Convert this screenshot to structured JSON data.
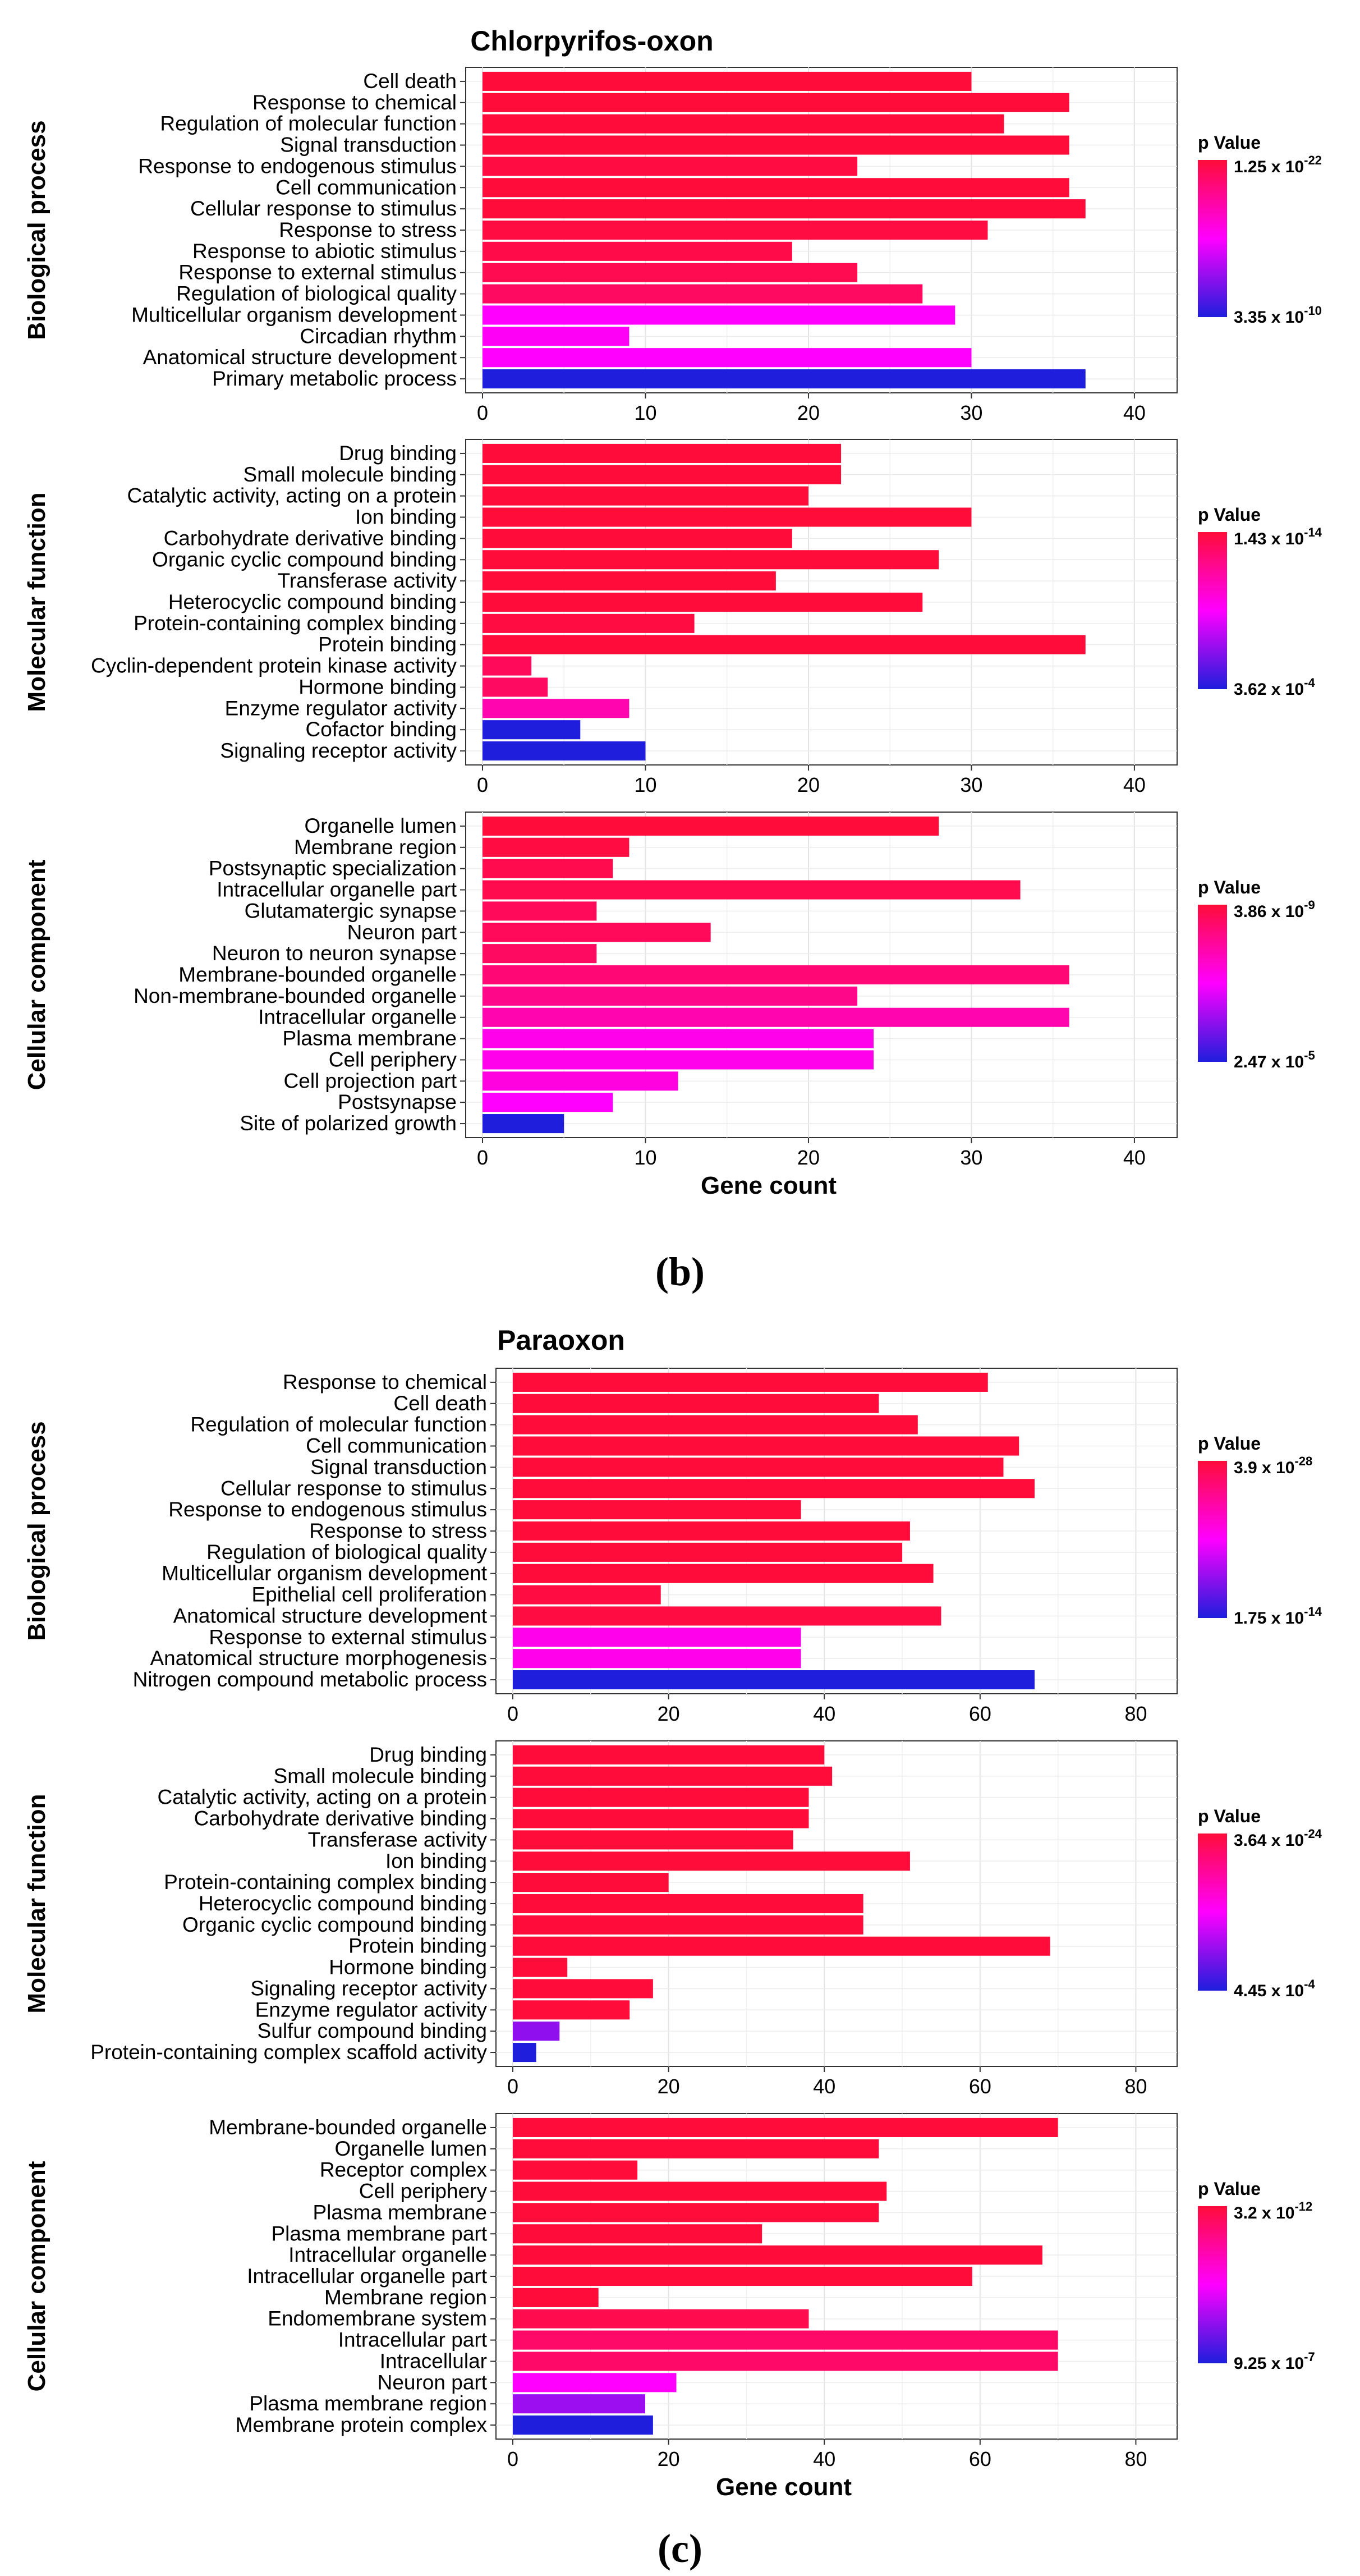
{
  "chart_data": [
    {
      "type": "bar",
      "title": "Chlorpyrifos-oxon",
      "caption": "(b)",
      "xlabel": "Gene count",
      "xlim": [
        0,
        42
      ],
      "xticks": [
        0,
        10,
        20,
        30,
        40
      ],
      "colorscale": {
        "high": "#ff0c3a",
        "mid": "#ff00ff",
        "low": "#1e1edc"
      },
      "panels": [
        {
          "facet": "Biological process",
          "categories": [
            "Cell death",
            "Response to chemical",
            "Regulation of molecular function",
            "Signal transduction",
            "Response to endogenous stimulus",
            "Cell communication",
            "Cellular response to stimulus",
            "Response to stress",
            "Response to abiotic stimulus",
            "Response to external stimulus",
            "Regulation of biological quality",
            "Multicellular organism development",
            "Circadian rhythm",
            "Anatomical structure development",
            "Primary metabolic process"
          ],
          "values": [
            30,
            36,
            32,
            36,
            23,
            36,
            37,
            31,
            19,
            23,
            27,
            29,
            9,
            30,
            37
          ],
          "color_fraction": [
            0,
            0,
            0,
            0,
            0.02,
            0,
            0,
            0.02,
            0.04,
            0.06,
            0.1,
            0.5,
            0.48,
            0.5,
            1.0
          ],
          "legend": {
            "title": "p Value",
            "high": {
              "mantissa": "1.25 x 10",
              "exp": "-22"
            },
            "low": {
              "mantissa": "3.35 x 10",
              "exp": "-10"
            }
          }
        },
        {
          "facet": "Molecular function",
          "categories": [
            "Drug binding",
            "Small molecule binding",
            "Catalytic activity, acting on a protein",
            "Ion binding",
            "Carbohydrate derivative binding",
            "Organic cyclic compound binding",
            "Transferase activity",
            "Heterocyclic compound binding",
            "Protein-containing complex binding",
            "Protein binding",
            "Cyclin-dependent protein kinase activity",
            "Hormone binding",
            "Enzyme regulator activity",
            "Cofactor binding",
            "Signaling receptor activity"
          ],
          "values": [
            22,
            22,
            20,
            30,
            19,
            28,
            18,
            27,
            13,
            37,
            3,
            4,
            9,
            6,
            10
          ],
          "color_fraction": [
            0,
            0,
            0,
            0,
            0,
            0,
            0,
            0,
            0.02,
            0,
            0.08,
            0.1,
            0.3,
            1.0,
            1.0
          ],
          "legend": {
            "title": "p Value",
            "high": {
              "mantissa": "1.43 x 10",
              "exp": "-14"
            },
            "low": {
              "mantissa": "3.62 x 10",
              "exp": "-4"
            }
          }
        },
        {
          "facet": "Cellular component",
          "categories": [
            "Organelle lumen",
            "Membrane region",
            "Postsynaptic specialization",
            "Intracellular organelle part",
            "Glutamatergic synapse",
            "Neuron part",
            "Neuron to neuron synapse",
            "Membrane-bounded organelle",
            "Non-membrane-bounded organelle",
            "Intracellular organelle",
            "Plasma membrane",
            "Cell periphery",
            "Cell projection part",
            "Postsynapse",
            "Site of polarized growth"
          ],
          "values": [
            28,
            9,
            8,
            33,
            7,
            14,
            7,
            36,
            23,
            36,
            24,
            24,
            12,
            8,
            5
          ],
          "color_fraction": [
            0,
            0.02,
            0.05,
            0.05,
            0.08,
            0.08,
            0.1,
            0.15,
            0.2,
            0.3,
            0.45,
            0.45,
            0.42,
            0.5,
            1.0
          ],
          "legend": {
            "title": "p Value",
            "high": {
              "mantissa": "3.86 x 10",
              "exp": "-9"
            },
            "low": {
              "mantissa": "2.47 x 10",
              "exp": "-5"
            }
          }
        }
      ]
    },
    {
      "type": "bar",
      "title": "Paraoxon",
      "caption": "(c)",
      "xlabel": "Gene count",
      "xlim": [
        0,
        84
      ],
      "xticks": [
        0,
        20,
        40,
        60,
        80
      ],
      "colorscale": {
        "high": "#ff0c3a",
        "mid": "#ff00ff",
        "low": "#1e1edc"
      },
      "panels": [
        {
          "facet": "Biological process",
          "categories": [
            "Response to chemical",
            "Cell death",
            "Regulation of molecular function",
            "Cell communication",
            "Signal transduction",
            "Cellular response to stimulus",
            "Response to endogenous stimulus",
            "Response to stress",
            "Regulation of biological quality",
            "Multicellular organism development",
            "Epithelial cell proliferation",
            "Anatomical structure development",
            "Response to external stimulus",
            "Anatomical structure morphogenesis",
            "Nitrogen compound metabolic process"
          ],
          "values": [
            61,
            47,
            52,
            65,
            63,
            67,
            37,
            51,
            50,
            54,
            19,
            55,
            37,
            37,
            67
          ],
          "color_fraction": [
            0,
            0,
            0,
            0,
            0,
            0,
            0,
            0,
            0,
            0,
            0.02,
            0.02,
            0.45,
            0.45,
            1.0
          ],
          "legend": {
            "title": "p Value",
            "high": {
              "mantissa": "3.9 x 10",
              "exp": "-28"
            },
            "low": {
              "mantissa": "1.75 x 10",
              "exp": "-14"
            }
          }
        },
        {
          "facet": "Molecular function",
          "categories": [
            "Drug binding",
            "Small molecule binding",
            "Catalytic activity, acting on a protein",
            "Carbohydrate derivative binding",
            "Transferase activity",
            "Ion binding",
            "Protein-containing complex binding",
            "Heterocyclic compound binding",
            "Organic cyclic compound binding",
            "Protein binding",
            "Hormone binding",
            "Signaling receptor activity",
            "Enzyme regulator activity",
            "Sulfur compound binding",
            "Protein-containing complex scaffold activity"
          ],
          "values": [
            40,
            41,
            38,
            38,
            36,
            51,
            20,
            45,
            45,
            69,
            7,
            18,
            15,
            6,
            3
          ],
          "color_fraction": [
            0,
            0,
            0,
            0,
            0,
            0,
            0,
            0,
            0,
            0,
            0,
            0,
            0,
            0.75,
            1.0
          ],
          "legend": {
            "title": "p Value",
            "high": {
              "mantissa": "3.64 x 10",
              "exp": "-24"
            },
            "low": {
              "mantissa": "4.45 x 10",
              "exp": "-4"
            }
          }
        },
        {
          "facet": "Cellular component",
          "categories": [
            "Membrane-bounded organelle",
            "Organelle lumen",
            "Receptor complex",
            "Cell periphery",
            "Plasma membrane",
            "Plasma membrane part",
            "Intracellular organelle",
            "Intracellular organelle part",
            "Membrane region",
            "Endomembrane system",
            "Intracellular part",
            "Intracellular",
            "Neuron part",
            "Plasma membrane region",
            "Membrane protein complex"
          ],
          "values": [
            70,
            47,
            16,
            48,
            47,
            32,
            68,
            59,
            11,
            38,
            70,
            70,
            21,
            17,
            18
          ],
          "color_fraction": [
            0,
            0,
            0,
            0,
            0,
            0,
            0,
            0,
            0,
            0.05,
            0.12,
            0.12,
            0.5,
            0.72,
            1.0
          ],
          "legend": {
            "title": "p Value",
            "high": {
              "mantissa": "3.2 x 10",
              "exp": "-12"
            },
            "low": {
              "mantissa": "9.25 x 10",
              "exp": "-7"
            }
          }
        }
      ]
    }
  ]
}
